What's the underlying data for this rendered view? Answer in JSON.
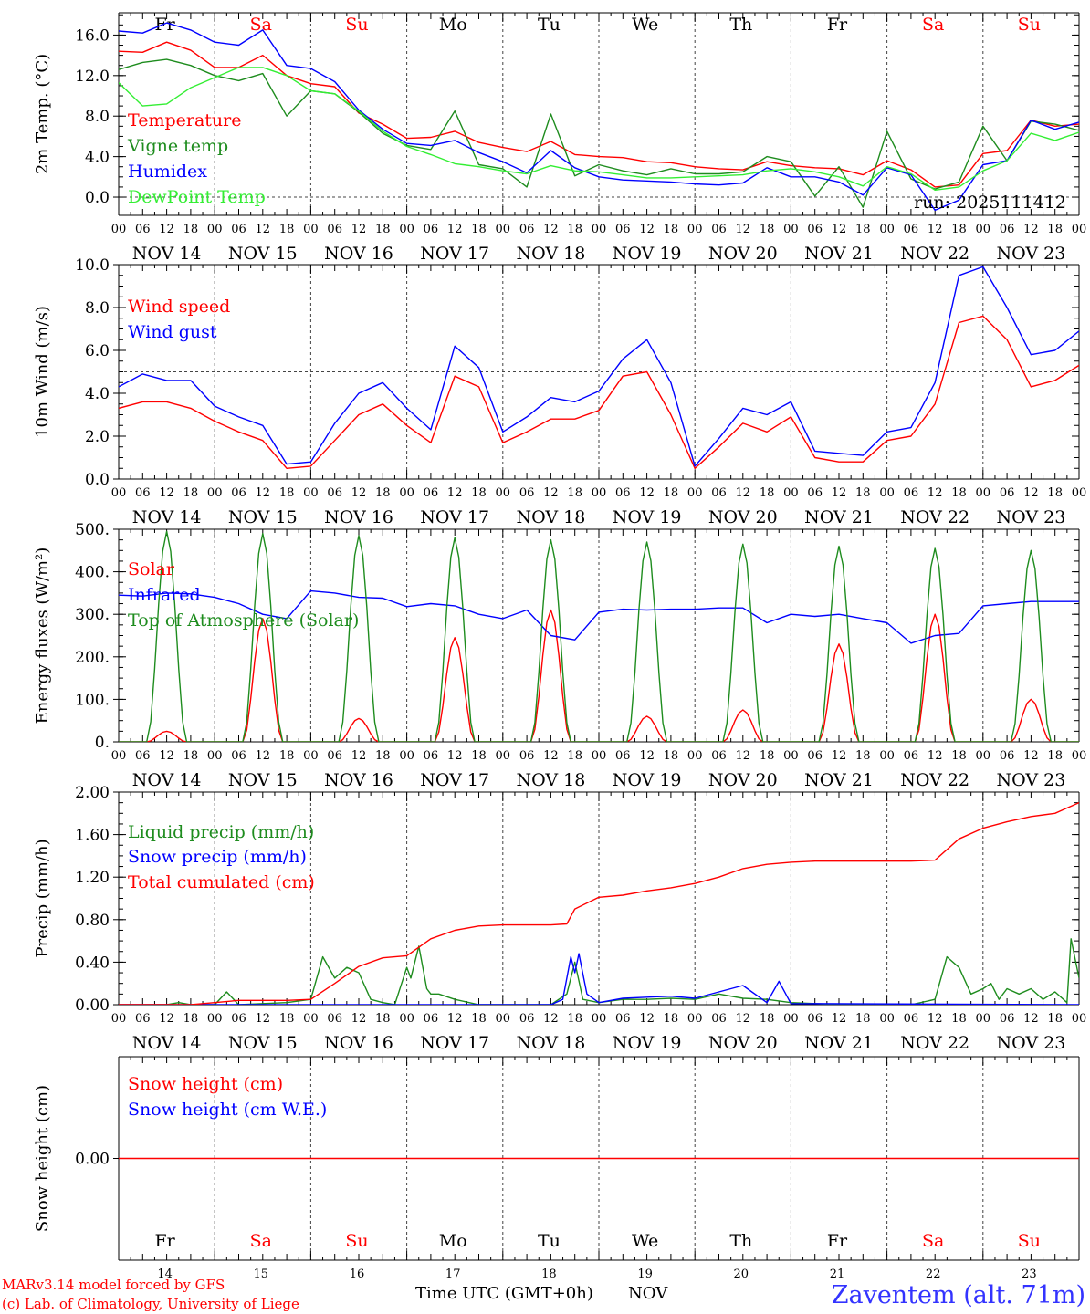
{
  "days": {
    "names": [
      "Fr",
      "Sa",
      "Su",
      "Mo",
      "Tu",
      "We",
      "Th",
      "Fr",
      "Sa",
      "Su"
    ],
    "weekend": [
      false,
      true,
      true,
      false,
      false,
      false,
      false,
      false,
      true,
      true
    ],
    "dates": [
      "NOV 14",
      "NOV 15",
      "NOV 16",
      "NOV 17",
      "NOV 18",
      "NOV 19",
      "NOV 20",
      "NOV 21",
      "NOV 22",
      "NOV 23"
    ],
    "daynums": [
      "14",
      "15",
      "16",
      "17",
      "18",
      "19",
      "20",
      "21",
      "22",
      "23"
    ],
    "hour_ticks": [
      "00",
      "06",
      "12",
      "18"
    ],
    "last_tick": "00"
  },
  "colors": {
    "red": "#ff0000",
    "green": "#1e8c1e",
    "blue": "#0000ff",
    "lightgreen": "#33ee33",
    "axis": "#000000",
    "footer_blue": "#3333ff"
  },
  "footer": {
    "model": "MARv3.14 model forced by GFS",
    "credit": "(c) Lab. of Climatology, University of Liege",
    "xlabel": "Time UTC (GMT+0h)",
    "month": "NOV",
    "station": "Zaventem (alt. 71m)"
  },
  "chart_data": [
    {
      "type": "line",
      "ylabel": "2m Temp. (°C)",
      "ylim": [
        -1.8,
        18.2
      ],
      "yticks": [
        0,
        4,
        8,
        12,
        16
      ],
      "ytick_labels": [
        "0.0",
        "4.0",
        "8.0",
        "12.0",
        "16.0"
      ],
      "dashed_hline": 0,
      "annotation": "run: 2025111412",
      "x_unit": "hours since Nov 14 00 UTC",
      "series": [
        {
          "name": "Temperature",
          "color": "red",
          "x": [
            0,
            6,
            12,
            18,
            24,
            30,
            36,
            42,
            48,
            54,
            60,
            66,
            72,
            78,
            84,
            90,
            96,
            102,
            108,
            114,
            120,
            126,
            132,
            138,
            144,
            150,
            156,
            162,
            168,
            174,
            180,
            186,
            192,
            198,
            204,
            210,
            216,
            222,
            228,
            234,
            240
          ],
          "y": [
            14.4,
            14.3,
            15.3,
            14.5,
            12.8,
            12.8,
            14.0,
            12.0,
            11.2,
            10.9,
            8.3,
            7.2,
            5.8,
            5.9,
            6.5,
            5.4,
            4.9,
            4.5,
            5.5,
            4.2,
            4.0,
            3.9,
            3.5,
            3.4,
            3.0,
            2.8,
            2.7,
            3.5,
            3.1,
            2.9,
            2.8,
            2.2,
            3.6,
            2.7,
            1.0,
            1.2,
            4.3,
            4.6,
            7.6,
            7.0,
            7.2
          ]
        },
        {
          "name": "Vigne temp",
          "color": "green",
          "x": [
            0,
            6,
            12,
            18,
            24,
            30,
            36,
            42,
            48,
            54,
            60,
            66,
            72,
            78,
            84,
            90,
            96,
            102,
            108,
            114,
            120,
            126,
            132,
            138,
            144,
            150,
            156,
            162,
            168,
            174,
            180,
            186,
            192,
            198,
            204,
            210,
            216,
            222,
            228,
            234,
            240
          ],
          "y": [
            12.6,
            13.3,
            13.6,
            13.0,
            12.0,
            11.5,
            12.2,
            8.0,
            10.5,
            10.2,
            8.4,
            6.3,
            5.1,
            4.7,
            8.5,
            3.2,
            2.8,
            1.0,
            8.2,
            2.1,
            3.2,
            2.6,
            2.2,
            2.8,
            2.3,
            2.3,
            2.5,
            4.0,
            3.5,
            0.1,
            3.0,
            -1.0,
            6.5,
            1.8,
            0.8,
            1.5,
            7.0,
            3.6,
            7.5,
            7.2,
            6.6
          ]
        },
        {
          "name": "Humidex",
          "color": "blue",
          "x": [
            0,
            6,
            12,
            18,
            24,
            30,
            36,
            42,
            48,
            54,
            60,
            66,
            72,
            78,
            84,
            90,
            96,
            102,
            108,
            114,
            120,
            126,
            132,
            138,
            144,
            150,
            156,
            162,
            168,
            174,
            180,
            186,
            192,
            198,
            204,
            210,
            216,
            222,
            228,
            234,
            240
          ],
          "y": [
            16.4,
            16.2,
            17.2,
            16.5,
            15.3,
            15.0,
            16.5,
            13.0,
            12.7,
            11.4,
            8.6,
            6.7,
            5.3,
            5.1,
            5.6,
            4.4,
            3.5,
            2.4,
            4.6,
            2.9,
            2.0,
            1.7,
            1.6,
            1.5,
            1.3,
            1.2,
            1.4,
            2.9,
            2.0,
            2.0,
            1.5,
            0.2,
            2.9,
            2.2,
            -1.3,
            -0.3,
            3.2,
            3.6,
            7.6,
            6.7,
            7.4
          ]
        },
        {
          "name": "DewPoint Temp",
          "color": "lightgreen",
          "x": [
            0,
            6,
            12,
            18,
            24,
            30,
            36,
            42,
            48,
            54,
            60,
            66,
            72,
            78,
            84,
            90,
            96,
            102,
            108,
            114,
            120,
            126,
            132,
            138,
            144,
            150,
            156,
            162,
            168,
            174,
            180,
            186,
            192,
            198,
            204,
            210,
            216,
            222,
            228,
            234,
            240
          ],
          "y": [
            11.3,
            9.0,
            9.2,
            10.8,
            11.8,
            12.8,
            12.8,
            12.0,
            10.5,
            10.2,
            8.5,
            6.5,
            5.0,
            4.2,
            3.3,
            3.0,
            2.6,
            2.3,
            3.1,
            2.6,
            2.5,
            2.2,
            1.9,
            1.9,
            2.0,
            2.1,
            2.2,
            2.6,
            2.8,
            2.5,
            2.0,
            1.1,
            3.0,
            2.3,
            0.7,
            1.0,
            2.6,
            3.6,
            6.3,
            5.6,
            6.4
          ]
        }
      ]
    },
    {
      "type": "line",
      "ylabel": "10m Wind (m/s)",
      "ylim": [
        0,
        10
      ],
      "yticks": [
        0,
        2,
        4,
        6,
        8,
        10
      ],
      "ytick_labels": [
        "0.0",
        "2.0",
        "4.0",
        "6.0",
        "8.0",
        "10.0"
      ],
      "dashed_hline": 5,
      "series": [
        {
          "name": "Wind speed",
          "color": "red",
          "x": [
            0,
            6,
            12,
            18,
            24,
            30,
            36,
            42,
            48,
            54,
            60,
            66,
            72,
            78,
            84,
            90,
            96,
            102,
            108,
            114,
            120,
            126,
            132,
            138,
            144,
            150,
            156,
            162,
            168,
            174,
            180,
            186,
            192,
            198,
            204,
            210,
            216,
            222,
            228,
            234,
            240
          ],
          "y": [
            3.3,
            3.6,
            3.6,
            3.3,
            2.7,
            2.2,
            1.8,
            0.5,
            0.6,
            1.8,
            3.0,
            3.5,
            2.5,
            1.7,
            4.8,
            4.3,
            1.7,
            2.2,
            2.8,
            2.8,
            3.2,
            4.8,
            5.0,
            3.0,
            0.5,
            1.5,
            2.6,
            2.2,
            2.9,
            1.0,
            0.8,
            0.8,
            1.8,
            2.0,
            3.5,
            7.3,
            7.6,
            6.5,
            4.3,
            4.6,
            5.3
          ]
        },
        {
          "name": "Wind gust",
          "color": "blue",
          "x": [
            0,
            6,
            12,
            18,
            24,
            30,
            36,
            42,
            48,
            54,
            60,
            66,
            72,
            78,
            84,
            90,
            96,
            102,
            108,
            114,
            120,
            126,
            132,
            138,
            144,
            150,
            156,
            162,
            168,
            174,
            180,
            186,
            192,
            198,
            204,
            210,
            216,
            222,
            228,
            234,
            240
          ],
          "y": [
            4.3,
            4.9,
            4.6,
            4.6,
            3.4,
            2.9,
            2.5,
            0.7,
            0.8,
            2.6,
            4.0,
            4.5,
            3.3,
            2.3,
            6.2,
            5.2,
            2.2,
            2.9,
            3.8,
            3.6,
            4.1,
            5.6,
            6.5,
            4.5,
            0.6,
            1.9,
            3.3,
            3.0,
            3.6,
            1.3,
            1.2,
            1.1,
            2.2,
            2.4,
            4.5,
            9.5,
            9.9,
            8.0,
            5.8,
            6.0,
            6.9
          ]
        }
      ]
    },
    {
      "type": "line",
      "ylabel": "Energy fluxes (W/m²)",
      "ylim": [
        0,
        500
      ],
      "yticks": [
        0,
        100,
        200,
        300,
        400,
        500
      ],
      "ytick_labels": [
        "0.",
        "100.",
        "200.",
        "300.",
        "400.",
        "500."
      ],
      "day_peaks": {
        "solar": [
          25,
          290,
          55,
          245,
          310,
          60,
          75,
          230,
          300,
          100
        ],
        "toa": [
          495,
          490,
          485,
          480,
          475,
          470,
          465,
          460,
          455,
          450
        ]
      },
      "series": [
        {
          "name": "Solar",
          "color": "red"
        },
        {
          "name": "Infrared",
          "color": "blue",
          "x": [
            0,
            6,
            12,
            18,
            24,
            30,
            36,
            42,
            48,
            54,
            60,
            66,
            72,
            78,
            84,
            90,
            96,
            102,
            108,
            114,
            120,
            126,
            132,
            138,
            144,
            150,
            156,
            162,
            168,
            174,
            180,
            186,
            192,
            198,
            204,
            210,
            216,
            222,
            228,
            234,
            240
          ],
          "y": [
            345,
            343,
            350,
            348,
            340,
            325,
            300,
            290,
            355,
            350,
            340,
            338,
            318,
            325,
            320,
            300,
            290,
            310,
            250,
            240,
            305,
            312,
            310,
            312,
            312,
            315,
            315,
            280,
            300,
            295,
            300,
            290,
            280,
            232,
            250,
            255,
            320,
            325,
            330,
            330,
            330
          ]
        },
        {
          "name": "Top of Atmosphere (Solar)",
          "color": "green"
        }
      ]
    },
    {
      "type": "line",
      "ylabel": "Precip (mm/h)",
      "ylim": [
        0,
        2
      ],
      "yticks": [
        0,
        0.4,
        0.8,
        1.2,
        1.6,
        2.0
      ],
      "ytick_labels": [
        "0.00",
        "0.40",
        "0.80",
        "1.20",
        "1.60",
        "2.00"
      ],
      "series": [
        {
          "name": "Liquid precip (mm/h)",
          "color": "green",
          "x": [
            0,
            6,
            12,
            15,
            18,
            24,
            27,
            30,
            36,
            42,
            48,
            51,
            54,
            57,
            60,
            63,
            66,
            69,
            72,
            73,
            75,
            77,
            78,
            80,
            84,
            90,
            96,
            108,
            112,
            114,
            116,
            120,
            126,
            132,
            138,
            144,
            150,
            156,
            162,
            168,
            174,
            180,
            186,
            192,
            198,
            204,
            207,
            210,
            213,
            216,
            218,
            220,
            222,
            225,
            228,
            231,
            234,
            237,
            238,
            240
          ],
          "y": [
            0,
            0,
            0,
            0.02,
            0,
            0,
            0.12,
            0,
            0.01,
            0.02,
            0.05,
            0.45,
            0.25,
            0.35,
            0.3,
            0.05,
            0.02,
            0,
            0.35,
            0.25,
            0.55,
            0.15,
            0.1,
            0.1,
            0.05,
            0,
            0,
            0,
            0.1,
            0.4,
            0.05,
            0.02,
            0.05,
            0.05,
            0.06,
            0.05,
            0.1,
            0.06,
            0.05,
            0.02,
            0.01,
            0,
            0,
            0,
            0,
            0.05,
            0.45,
            0.35,
            0.1,
            0.15,
            0.2,
            0.05,
            0.15,
            0.1,
            0.15,
            0.05,
            0.12,
            0.02,
            0.62,
            0.25
          ]
        },
        {
          "name": "Snow precip (mm/h)",
          "color": "blue",
          "x": [
            0,
            108,
            111,
            113,
            114,
            115,
            117,
            120,
            126,
            132,
            138,
            144,
            150,
            156,
            162,
            165,
            168,
            240
          ],
          "y": [
            0,
            0,
            0.05,
            0.45,
            0.3,
            0.48,
            0.1,
            0.02,
            0.06,
            0.07,
            0.08,
            0.06,
            0.12,
            0.18,
            0.02,
            0.22,
            0.01,
            0
          ]
        },
        {
          "name": "Total cumulated (cm)",
          "color": "red",
          "x": [
            0,
            6,
            12,
            18,
            24,
            30,
            36,
            42,
            48,
            54,
            60,
            66,
            72,
            78,
            84,
            90,
            96,
            102,
            108,
            112,
            114,
            120,
            126,
            132,
            138,
            144,
            150,
            156,
            162,
            168,
            174,
            180,
            186,
            192,
            198,
            204,
            210,
            216,
            222,
            228,
            234,
            240
          ],
          "y": [
            0,
            0,
            0,
            0,
            0.02,
            0.04,
            0.04,
            0.04,
            0.05,
            0.2,
            0.36,
            0.44,
            0.46,
            0.62,
            0.7,
            0.74,
            0.75,
            0.75,
            0.75,
            0.76,
            0.9,
            1.01,
            1.03,
            1.07,
            1.1,
            1.14,
            1.2,
            1.28,
            1.32,
            1.34,
            1.35,
            1.35,
            1.35,
            1.35,
            1.35,
            1.36,
            1.56,
            1.66,
            1.72,
            1.77,
            1.8,
            1.9
          ]
        }
      ]
    },
    {
      "type": "line",
      "ylabel": "Snow height (cm)",
      "ylim": [
        -1,
        1
      ],
      "yticks": [
        0
      ],
      "ytick_labels": [
        "0.00"
      ],
      "series": [
        {
          "name": "Snow height (cm)",
          "color": "red",
          "x": [
            0,
            240
          ],
          "y": [
            0,
            0
          ]
        },
        {
          "name": "Snow height (cm W.E.)",
          "color": "blue"
        }
      ]
    }
  ]
}
